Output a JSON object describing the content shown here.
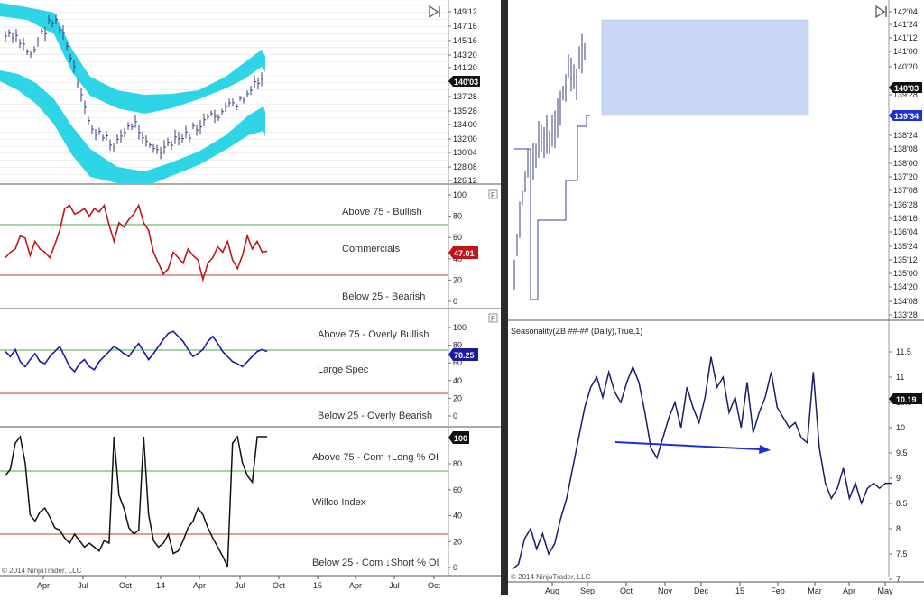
{
  "left": {
    "price": {
      "y_labels": [
        "149'12",
        "147'16",
        "145'16",
        "143'20",
        "141'20",
        "137'28",
        "135'28",
        "134'00",
        "132'00",
        "130'04",
        "128'08",
        "126'12"
      ],
      "current": "140'03",
      "play_icon": "play-end-icon"
    },
    "commercials": {
      "label_above": "Above 75 - Bullish",
      "label_mid": "Commercials",
      "label_below": "Below 25 - Bearish",
      "value": "47.01",
      "y_labels": [
        "100",
        "80",
        "60",
        "40",
        "20",
        "0"
      ],
      "marker": "F"
    },
    "large_spec": {
      "label_above": "Above 75 - Overly Bullish",
      "label_mid": "Large Spec",
      "label_below": "Below 25 - Overly Bearish",
      "value": "70.25",
      "y_labels": [
        "100",
        "80",
        "60",
        "40",
        "20",
        "0"
      ],
      "marker": "F"
    },
    "willco": {
      "label_above": "Above 75 - Com ↑Long % OI",
      "label_mid": "Willco Index",
      "label_below": "Below 25 - Com ↓Short % OI",
      "value": "100",
      "y_labels": [
        "80",
        "60",
        "40",
        "20",
        "0"
      ]
    },
    "x_labels": [
      "Apr",
      "Jul",
      "Oct",
      "14",
      "Apr",
      "Jul",
      "Oct",
      "15",
      "Apr",
      "Jul",
      "Oct"
    ],
    "copyright": "© 2014 NinjaTrader, LLC"
  },
  "right": {
    "price": {
      "y_labels": [
        "142'04",
        "141'24",
        "141'12",
        "141'00",
        "140'20",
        "139'28",
        "138'24",
        "138'08",
        "138'00",
        "137'20",
        "137'08",
        "136'28",
        "136'16",
        "136'04",
        "135'24",
        "135'12",
        "135'00",
        "134'20",
        "134'08",
        "133'28"
      ],
      "current": "140'03",
      "current2": "139'34",
      "play_icon": "play-end-icon"
    },
    "seasonality": {
      "title": "Seasonality(ZB ##-## (Daily),True,1)",
      "y_labels": [
        "11.5",
        "11",
        "10.5",
        "10",
        "9.5",
        "9",
        "8.5",
        "8",
        "7.5",
        "7"
      ],
      "value": "10.19"
    },
    "x_labels": [
      "Aug",
      "Sep",
      "Oct",
      "Nov",
      "Dec",
      "15",
      "Feb",
      "Mar",
      "Apr",
      "May"
    ],
    "copyright": "© 2014 NinjaTrader, LLC"
  },
  "colors": {
    "band": "#22d3e6",
    "commercials": "#c0161b",
    "spec": "#1a1d9a",
    "willco": "#111111",
    "green_line": "#4aa84a",
    "red_line": "#c0392b",
    "selection": "#c9d7f5",
    "arrow": "#1f2fd6"
  }
}
